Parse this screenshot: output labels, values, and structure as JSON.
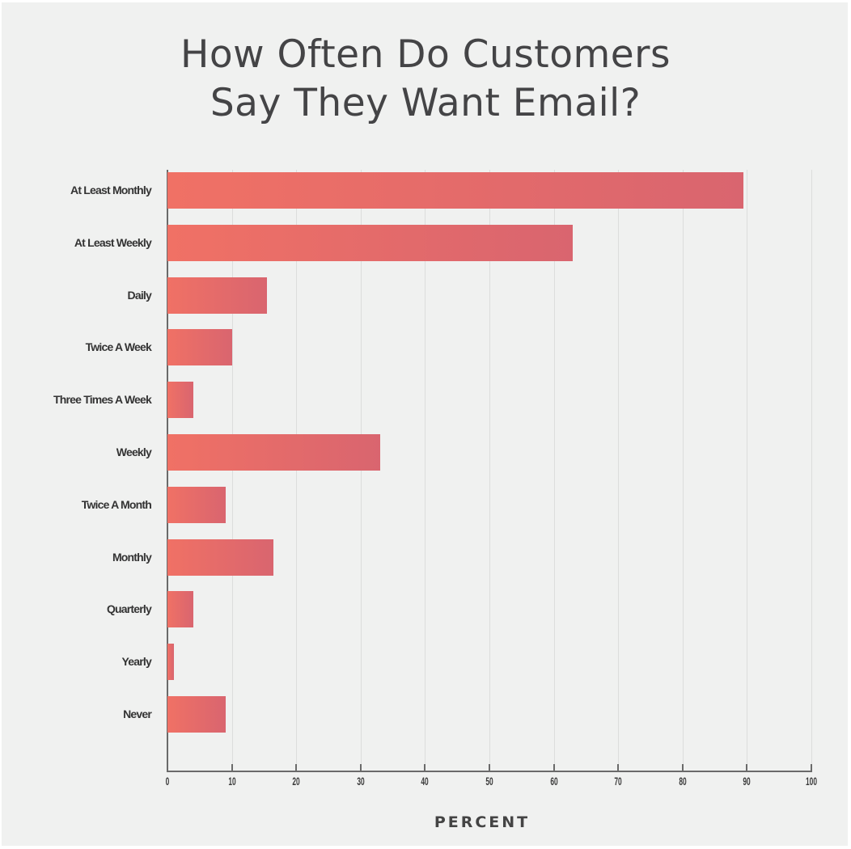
{
  "title_lines": [
    "How Often Do Customers",
    "Say They Want Email?"
  ],
  "chart_data": {
    "type": "bar",
    "orientation": "horizontal",
    "title": "How Often Do Customers Say They Want Email?",
    "xlabel": "PERCENT",
    "ylabel": "",
    "xlim": [
      0,
      100
    ],
    "xticks": [
      0,
      10,
      20,
      30,
      40,
      50,
      60,
      70,
      80,
      90,
      100
    ],
    "grid": true,
    "legend": null,
    "categories": [
      "At Least Monthly",
      "At Least Weekly",
      "Daily",
      "Twice A Week",
      "Three Times A Week",
      "Weekly",
      "Twice A Month",
      "Monthly",
      "Quarterly",
      "Yearly",
      "Never"
    ],
    "values": [
      89.5,
      63,
      15.5,
      10,
      4,
      33,
      9,
      16.5,
      4,
      1,
      9
    ],
    "bar_color_start": "#f07165",
    "bar_color_end": "#d9656f"
  },
  "tick_labels": [
    "0",
    "10",
    "20",
    "30",
    "40",
    "50",
    "60",
    "70",
    "80",
    "90",
    "100"
  ],
  "background_color": "#f0f1f0"
}
